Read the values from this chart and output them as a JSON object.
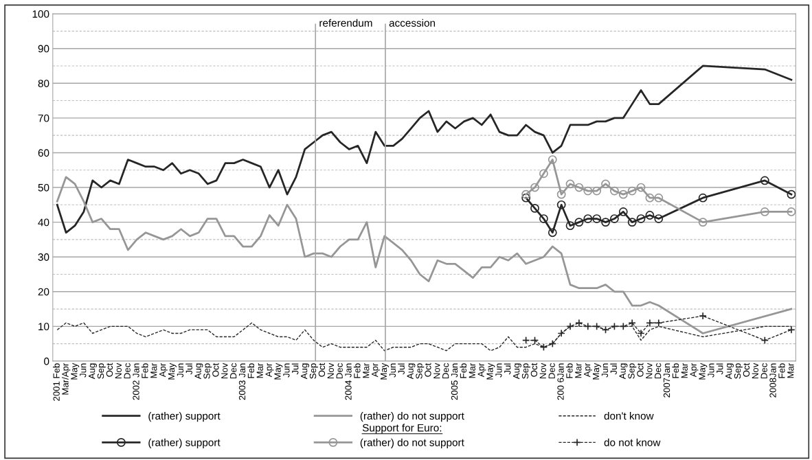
{
  "chart_data": {
    "type": "line",
    "categories": [
      "2001 Feb",
      "Mar/Apr",
      "May",
      "Jun",
      "Aug",
      "Sep",
      "Oct",
      "Nov",
      "Dec",
      "2002 Jan",
      "Feb",
      "Mar",
      "Apr",
      "May",
      "Jun",
      "Jul",
      "Aug",
      "Sep",
      "Oct",
      "Nov",
      "Dec",
      "2003 Jan",
      "Feb",
      "Mar",
      "Apr",
      "May",
      "Jun",
      "Jul",
      "Aug",
      "Sep",
      "Oct",
      "Nov",
      "Dec",
      "2004 Jan",
      "Feb",
      "Mar",
      "Apr",
      "May",
      "Jun",
      "Jul",
      "Aug",
      "Sep",
      "Oct",
      "Nov",
      "Dec",
      "2005 Jan",
      "Feb",
      "Mar",
      "Apr",
      "May",
      "Jun",
      "Jul",
      "Aug",
      "Sep",
      "Oct",
      "Nov",
      "Dec",
      "200 6Jan",
      "Feb",
      "Mar",
      "Apr",
      "May",
      "Jun",
      "Jul",
      "Aug",
      "Sep",
      "Oct",
      "Nov",
      "Dec",
      "2007Jan",
      "Feb",
      "Mar",
      "Apr",
      "May",
      "Jun",
      "Jul",
      "Aug",
      "Sep",
      "Oct",
      "Nov",
      "Dec",
      "2008Jan",
      "Feb",
      "Mar"
    ],
    "series": [
      {
        "name": "(rather) support",
        "color": "#262626",
        "marker": "none",
        "line_style": "solid",
        "values": [
          45,
          37,
          39,
          43,
          52,
          50,
          52,
          51,
          58,
          57,
          56,
          56,
          55,
          57,
          54,
          55,
          54,
          51,
          52,
          57,
          57,
          58,
          57,
          56,
          50,
          55,
          48,
          53,
          61,
          63,
          65,
          66,
          63,
          61,
          62,
          57,
          66,
          62,
          62,
          64,
          67,
          70,
          72,
          66,
          69,
          67,
          69,
          70,
          68,
          71,
          66,
          65,
          65,
          68,
          66,
          65,
          60,
          62,
          68,
          68,
          68,
          69,
          69,
          70,
          70,
          74,
          78,
          74,
          74,
          null,
          null,
          null,
          null,
          85,
          null,
          null,
          null,
          null,
          null,
          null,
          84,
          null,
          null,
          81
        ]
      },
      {
        "name": "(rather) do not support",
        "color": "#969696",
        "marker": "none",
        "line_style": "solid",
        "values": [
          46,
          53,
          51,
          46,
          40,
          41,
          38,
          38,
          32,
          35,
          37,
          36,
          35,
          36,
          38,
          36,
          37,
          41,
          41,
          36,
          36,
          33,
          33,
          36,
          42,
          39,
          45,
          41,
          30,
          31,
          31,
          30,
          33,
          35,
          35,
          40,
          27,
          36,
          34,
          32,
          29,
          25,
          23,
          29,
          28,
          28,
          26,
          24,
          27,
          27,
          30,
          29,
          31,
          28,
          29,
          30,
          33,
          31,
          22,
          21,
          21,
          21,
          22,
          20,
          20,
          16,
          16,
          17,
          16,
          null,
          null,
          null,
          null,
          8,
          null,
          null,
          null,
          null,
          null,
          null,
          null,
          null,
          null,
          15
        ]
      },
      {
        "name": "don't know",
        "color": "#262626",
        "marker": "none",
        "line_style": "dashed",
        "values": [
          9,
          11,
          10,
          11,
          8,
          9,
          10,
          10,
          10,
          8,
          7,
          8,
          9,
          8,
          8,
          9,
          9,
          9,
          7,
          7,
          7,
          9,
          11,
          9,
          8,
          7,
          7,
          6,
          9,
          6,
          4,
          5,
          4,
          4,
          4,
          4,
          6,
          3,
          4,
          4,
          4,
          5,
          5,
          4,
          3,
          5,
          5,
          5,
          5,
          3,
          4,
          7,
          4,
          4,
          5,
          4,
          5,
          8,
          10,
          10,
          10,
          10,
          9,
          10,
          10,
          10,
          6,
          9,
          10,
          null,
          null,
          null,
          null,
          7,
          null,
          null,
          null,
          null,
          null,
          null,
          10,
          null,
          null,
          10
        ]
      },
      {
        "name": "(rather) support",
        "color": "#262626",
        "marker": "circle",
        "line_style": "solid",
        "values": [
          null,
          null,
          null,
          null,
          null,
          null,
          null,
          null,
          null,
          null,
          null,
          null,
          null,
          null,
          null,
          null,
          null,
          null,
          null,
          null,
          null,
          null,
          null,
          null,
          null,
          null,
          null,
          null,
          null,
          null,
          null,
          null,
          null,
          null,
          null,
          null,
          null,
          null,
          null,
          null,
          null,
          null,
          null,
          null,
          null,
          null,
          null,
          null,
          null,
          null,
          null,
          null,
          null,
          47,
          44,
          41,
          37,
          45,
          39,
          40,
          41,
          41,
          40,
          41,
          43,
          40,
          41,
          42,
          41,
          null,
          null,
          null,
          null,
          47,
          null,
          null,
          null,
          null,
          null,
          null,
          52,
          null,
          null,
          48
        ]
      },
      {
        "name": "(rather) do not support",
        "color": "#969696",
        "marker": "circle",
        "line_style": "solid",
        "values": [
          null,
          null,
          null,
          null,
          null,
          null,
          null,
          null,
          null,
          null,
          null,
          null,
          null,
          null,
          null,
          null,
          null,
          null,
          null,
          null,
          null,
          null,
          null,
          null,
          null,
          null,
          null,
          null,
          null,
          null,
          null,
          null,
          null,
          null,
          null,
          null,
          null,
          null,
          null,
          null,
          null,
          null,
          null,
          null,
          null,
          null,
          null,
          null,
          null,
          null,
          null,
          null,
          null,
          48,
          50,
          54,
          58,
          48,
          51,
          50,
          49,
          49,
          51,
          49,
          48,
          49,
          50,
          47,
          47,
          null,
          null,
          null,
          null,
          40,
          null,
          null,
          null,
          null,
          null,
          null,
          43,
          null,
          null,
          43
        ]
      },
      {
        "name": "do not know",
        "color": "#262626",
        "marker": "cross",
        "line_style": "dashed",
        "values": [
          null,
          null,
          null,
          null,
          null,
          null,
          null,
          null,
          null,
          null,
          null,
          null,
          null,
          null,
          null,
          null,
          null,
          null,
          null,
          null,
          null,
          null,
          null,
          null,
          null,
          null,
          null,
          null,
          null,
          null,
          null,
          null,
          null,
          null,
          null,
          null,
          null,
          null,
          null,
          null,
          null,
          null,
          null,
          null,
          null,
          null,
          null,
          null,
          null,
          null,
          null,
          null,
          null,
          6,
          6,
          4,
          5,
          8,
          10,
          11,
          10,
          10,
          9,
          10,
          10,
          11,
          8,
          11,
          11,
          null,
          null,
          null,
          null,
          13,
          null,
          null,
          null,
          null,
          null,
          null,
          6,
          null,
          null,
          9
        ]
      }
    ],
    "ylim": [
      0,
      100
    ],
    "yticks": [
      0,
      10,
      20,
      30,
      40,
      50,
      60,
      70,
      80,
      90,
      100
    ],
    "grid": "y",
    "legend": "bottom",
    "annotations": [
      "Support for Euro:",
      "referendum",
      "accession"
    ]
  }
}
